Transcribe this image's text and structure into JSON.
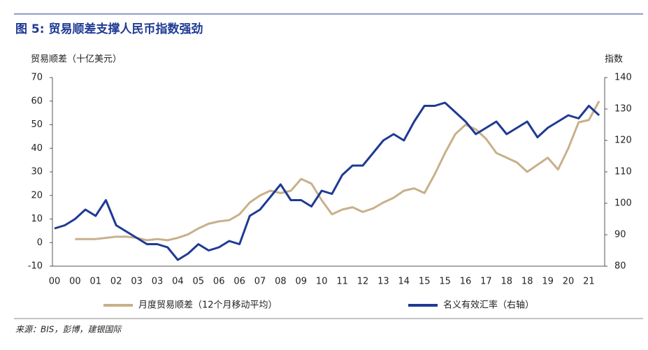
{
  "chart_data": {
    "type": "line",
    "title": "图 5: 贸易顺差支撑人民币指数强劲",
    "ylabel": "贸易顺差（十亿美元）",
    "y2label": "指数",
    "source": "来源：BIS，彭博，建银国际",
    "categories": [
      "00",
      null,
      "00",
      null,
      "01",
      null,
      "02",
      null,
      "03",
      null,
      "03",
      null,
      "04",
      null,
      "05",
      null,
      "06",
      null,
      "06",
      null,
      "07",
      null,
      "08",
      null,
      "09",
      null,
      "10",
      null,
      "11",
      null,
      "12",
      null,
      "13",
      null,
      "14",
      null,
      "15",
      null,
      "15",
      null,
      "16",
      null,
      "17",
      null,
      "18",
      null,
      "18",
      null,
      "19",
      null,
      "20",
      null,
      "21",
      null
    ],
    "ylim": [
      -10,
      70
    ],
    "yticks": [
      -10,
      0,
      10,
      20,
      30,
      40,
      50,
      60,
      70
    ],
    "y2lim": [
      80,
      140
    ],
    "y2ticks": [
      80,
      90,
      100,
      110,
      120,
      130,
      140
    ],
    "legend": "bottom",
    "series": [
      {
        "name": "月度贸易顺差（12个月移动平均）",
        "color": "#c8b08a",
        "values": [
          null,
          null,
          1.5,
          1.5,
          1.5,
          2,
          2.5,
          2.5,
          2,
          1,
          1.5,
          1,
          2,
          3.5,
          6,
          8,
          9,
          9.5,
          12,
          17,
          20,
          22,
          21,
          22,
          27,
          25,
          18,
          12,
          14,
          15,
          13,
          14.5,
          17,
          19,
          22,
          23,
          21,
          29,
          38,
          46,
          50,
          48,
          44,
          38,
          36,
          34,
          30,
          33,
          36,
          31,
          40,
          51,
          52,
          60
        ]
      },
      {
        "name": "名义有效汇率（右轴）",
        "color": "#1f3a93",
        "axis": "y2",
        "values": [
          92,
          93,
          95,
          98,
          96,
          101,
          93,
          91,
          89,
          87,
          87,
          86,
          82,
          84,
          87,
          85,
          86,
          88,
          87,
          96,
          98,
          102,
          106,
          101,
          101,
          99,
          104,
          103,
          109,
          112,
          112,
          116,
          120,
          122,
          120,
          126,
          131,
          131,
          132,
          129,
          126,
          122,
          124,
          126,
          122,
          124,
          126,
          121,
          124,
          126,
          128,
          127,
          131,
          128
        ]
      }
    ]
  }
}
